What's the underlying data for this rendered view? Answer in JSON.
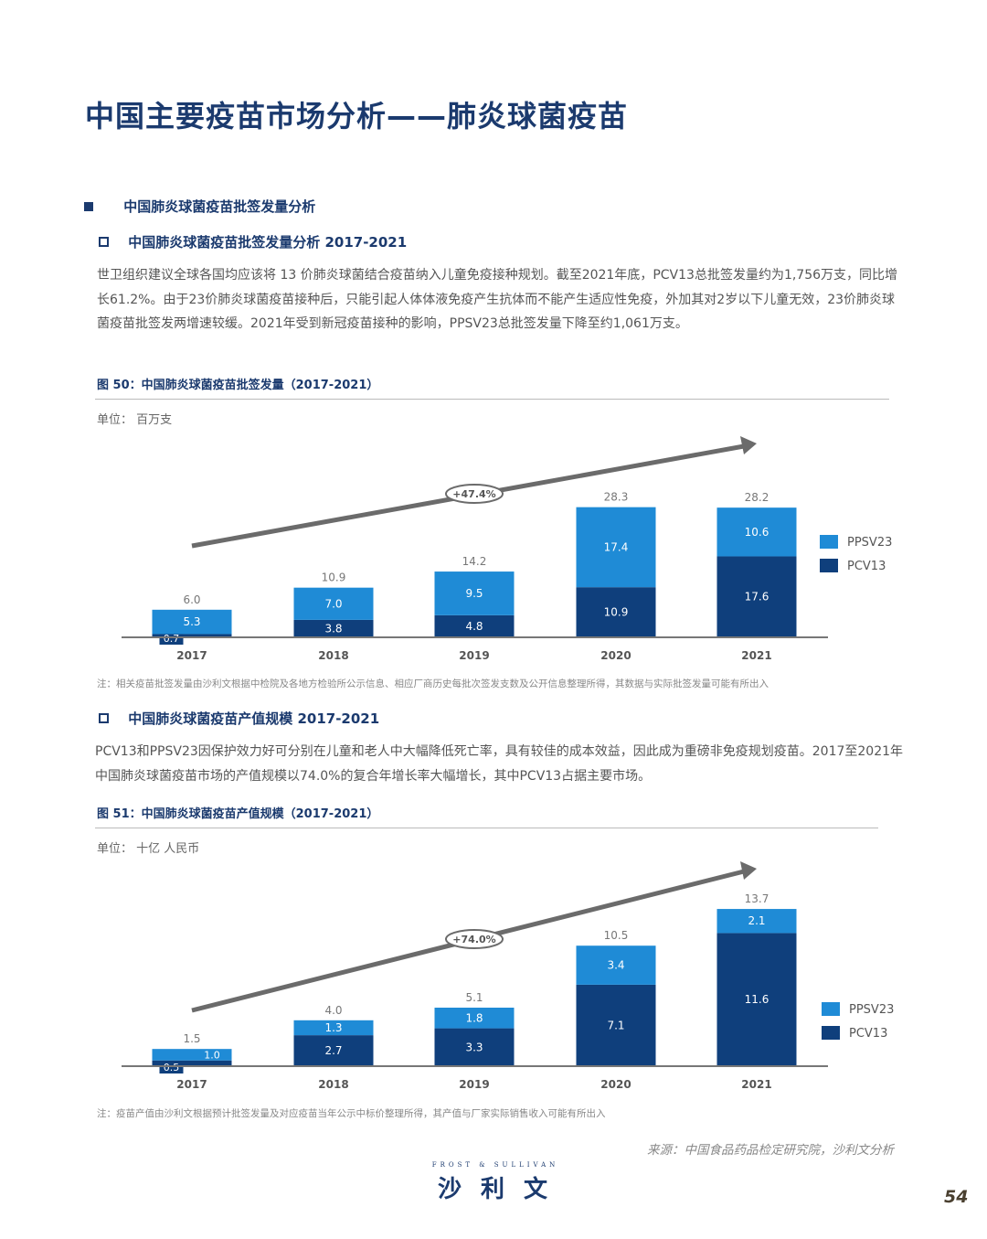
{
  "title": "中国主要疫苗市场分析——肺炎球菌疫苗",
  "section": "中国肺炎球菌疫苗批签发量分析",
  "sub1": {
    "heading": "中国肺炎球菌疫苗批签发量分析 2017-2021",
    "paragraph": "世卫组织建议全球各国均应该将 13 价肺炎球菌结合疫苗纳入儿童免疫接种规划。截至2021年底，PCV13总批签发量约为1,756万支，同比增长61.2%。由于23价肺炎球菌疫苗接种后，只能引起人体体液免疫产生抗体而不能产生适应性免疫，外加其对2岁以下儿童无效，23价肺炎球菌疫苗批签发两增速较缓。2021年受到新冠疫苗接种的影响，PPSV23总批签发量下降至约1,061万支。",
    "figure_caption": "图 50：中国肺炎球菌疫苗批签发量（2017-2021）",
    "unit": "单位：  百万支",
    "note": "注：相关疫苗批签发量由沙利文根据中检院及各地方检验所公示信息、相应厂商历史每批次签发支数及公开信息整理所得，其数据与实际批签发量可能有所出入"
  },
  "sub2": {
    "heading": "中国肺炎球菌疫苗产值规模 2017-2021",
    "paragraph": "PCV13和PPSV23因保护效力好可分别在儿童和老人中大幅降低死亡率，具有较佳的成本效益，因此成为重磅非免疫规划疫苗。2017至2021年中国肺炎球菌疫苗市场的产值规模以74.0%的复合年增长率大幅增长，其中PCV13占据主要市场。",
    "figure_caption": "图 51：中国肺炎球菌疫苗产值规模（2017-2021）",
    "unit": "单位：  十亿 人民币",
    "note": "注：疫苗产值由沙利文根据预计批签发量及对应疫苗当年公示中标价整理所得，其产值与厂家实际销售收入可能有所出入"
  },
  "source": "来源：中国食品药品检定研究院，沙利文分析",
  "logo": {
    "en": "FROST & SULLIVAN",
    "cn": "沙 利 文"
  },
  "page_number": "54",
  "colors": {
    "PPSV23": "#1f8bd6",
    "PCV13": "#0f3f7c",
    "title": "#1b3a6e"
  },
  "chart_data": [
    {
      "type": "bar",
      "stacked": true,
      "categories": [
        "2017",
        "2018",
        "2019",
        "2020",
        "2021"
      ],
      "series": [
        {
          "name": "PCV13",
          "values": [
            0.7,
            3.8,
            4.8,
            10.9,
            17.6
          ]
        },
        {
          "name": "PPSV23",
          "values": [
            5.3,
            7.0,
            9.5,
            17.4,
            10.6
          ]
        }
      ],
      "totals": [
        "6.0",
        "10.9",
        "14.2",
        "28.3",
        "28.2"
      ],
      "growth_label": "+47.4%",
      "legend": "right",
      "ylim": [
        0,
        30
      ]
    },
    {
      "type": "bar",
      "stacked": true,
      "categories": [
        "2017",
        "2018",
        "2019",
        "2020",
        "2021"
      ],
      "series": [
        {
          "name": "PCV13",
          "values": [
            0.5,
            2.7,
            3.3,
            7.1,
            11.6
          ]
        },
        {
          "name": "PPSV23",
          "values": [
            1.0,
            1.3,
            1.8,
            3.4,
            2.1
          ]
        }
      ],
      "totals": [
        "1.5",
        "4.0",
        "5.1",
        "10.5",
        "13.7"
      ],
      "growth_label": "+74.0%",
      "legend": "right",
      "ylim": [
        0,
        14
      ]
    }
  ]
}
